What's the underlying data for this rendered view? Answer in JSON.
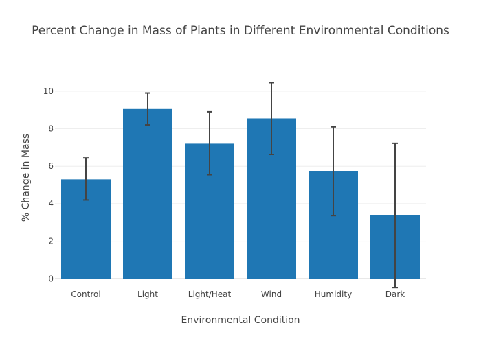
{
  "chart_data": {
    "type": "bar",
    "title": "Percent Change in Mass of Plants in Different Environmental Conditions",
    "xlabel": "Environmental Condition",
    "ylabel": "% Change in Mass",
    "categories": [
      "Control",
      "Light",
      "Light/Heat",
      "Wind",
      "Humidity",
      "Dark"
    ],
    "values": [
      5.3,
      9.05,
      7.2,
      8.55,
      5.75,
      3.38
    ],
    "error_upper": [
      6.44,
      9.9,
      8.9,
      10.45,
      8.1,
      7.22
    ],
    "error_lower": [
      4.2,
      8.2,
      5.55,
      6.63,
      3.37,
      -0.47
    ],
    "ylim": [
      -0.5,
      11.2
    ],
    "yticks": [
      0,
      2,
      4,
      6,
      8,
      10
    ],
    "grid": true,
    "legend": "none",
    "colors": {
      "bar": "#1f77b4",
      "errbar": "#444444",
      "text": "#444444",
      "grid": "#eeeeee"
    }
  }
}
